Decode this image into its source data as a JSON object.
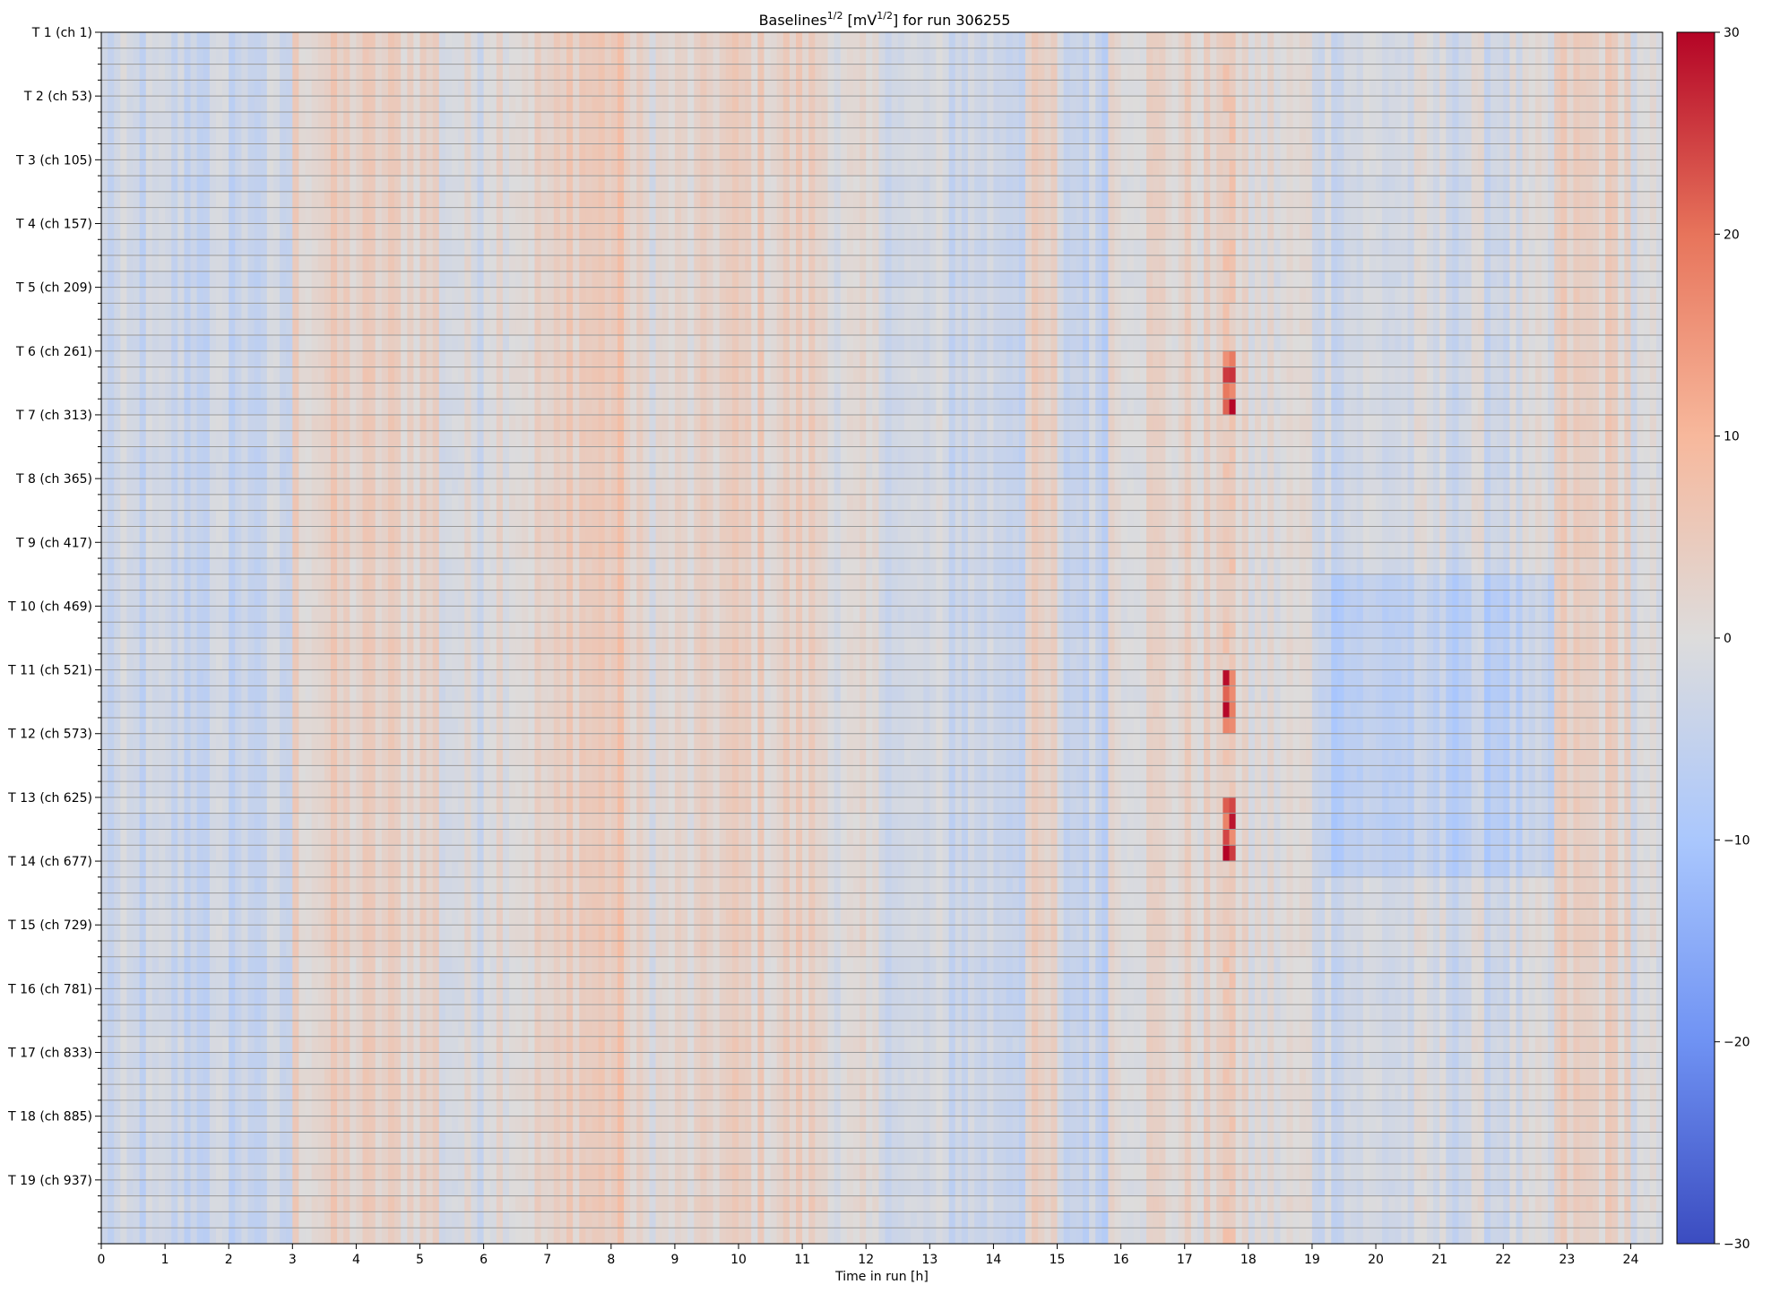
{
  "chart_data": {
    "type": "heatmap",
    "title": "Baselines",
    "title_exponent": "1/2",
    "title_unit_open": " [mV",
    "title_unit_exponent": "1/2",
    "title_suffix": "] for run 306255",
    "xlabel": "Time in run [h]",
    "ylabel": "",
    "xlim": [
      0,
      24.5
    ],
    "x_ticks": [
      0,
      1,
      2,
      3,
      4,
      5,
      6,
      7,
      8,
      9,
      10,
      11,
      12,
      13,
      14,
      15,
      16,
      17,
      18,
      19,
      20,
      21,
      22,
      23,
      24
    ],
    "channels_total": 988,
    "channel_block_size": 52,
    "y_tick_labels": [
      "T 1 (ch 1)",
      "T 2 (ch 53)",
      "T 3 (ch 105)",
      "T 4 (ch 157)",
      "T 5 (ch 209)",
      "T 6 (ch 261)",
      "T 7 (ch 313)",
      "T 8 (ch 365)",
      "T 9 (ch 417)",
      "T 10 (ch 469)",
      "T 11 (ch 521)",
      "T 12 (ch 573)",
      "T 13 (ch 625)",
      "T 14 (ch 677)",
      "T 15 (ch 729)",
      "T 16 (ch 781)",
      "T 17 (ch 833)",
      "T 18 (ch 885)",
      "T 19 (ch 937)"
    ],
    "colorbar": {
      "min": -30,
      "max": 30,
      "ticks": [
        30,
        20,
        10,
        0,
        -10,
        -20,
        -30
      ],
      "tick_labels": [
        "30",
        "20",
        "10",
        "0",
        "−10",
        "−20",
        "−30"
      ],
      "colormap": "coolwarm",
      "colors": [
        "#3b4cc0",
        "#6f92f3",
        "#aac7fd",
        "#dddcdc",
        "#f7b89c",
        "#e7745b",
        "#b40426"
      ]
    },
    "hotspot": {
      "time_h": 17.6,
      "max_value": 30,
      "channel_ranges": [
        [
          261,
          313
        ],
        [
          521,
          573
        ],
        [
          625,
          677
        ]
      ]
    },
    "grid": true,
    "legend": "colorbar-right"
  }
}
